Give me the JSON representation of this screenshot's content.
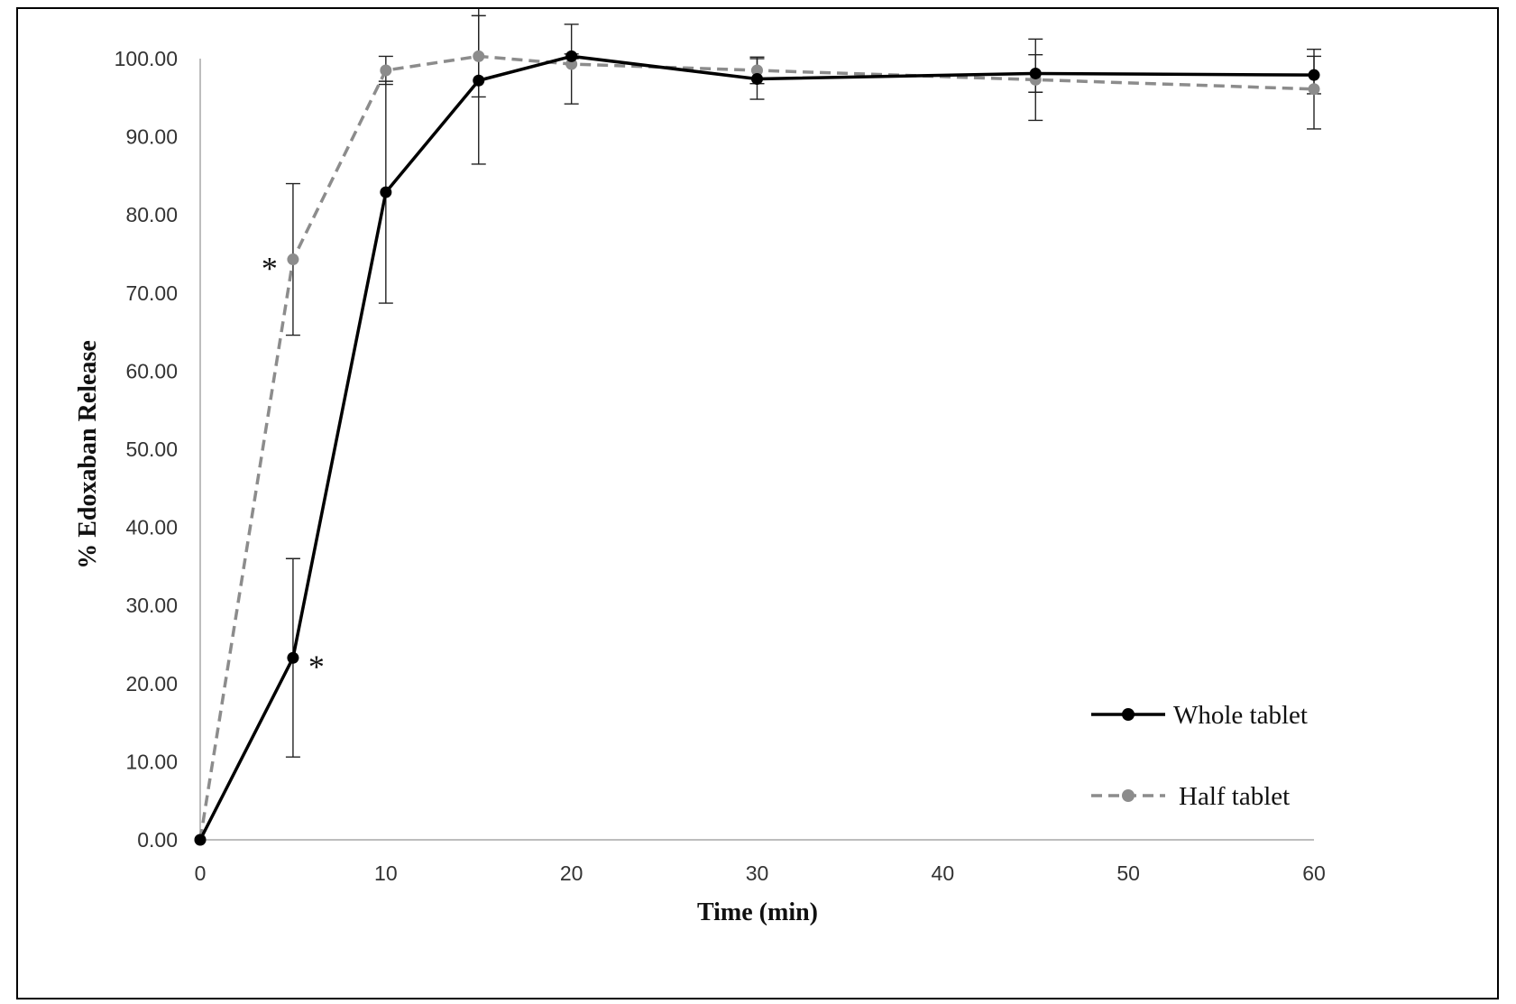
{
  "chart_data": {
    "type": "line",
    "xlabel": "Time (min)",
    "ylabel": "% Edoxaban Release",
    "xlim": [
      0,
      60
    ],
    "ylim": [
      0,
      100
    ],
    "xticks": [
      0,
      10,
      20,
      30,
      40,
      50,
      60
    ],
    "yticks": [
      "0.00",
      "10.00",
      "20.00",
      "30.00",
      "40.00",
      "50.00",
      "60.00",
      "70.00",
      "80.00",
      "90.00",
      "100.00"
    ],
    "legend_position": "bottom-right",
    "grid": false,
    "series": [
      {
        "name": "Whole tablet",
        "color": "#000000",
        "style": "solid",
        "x": [
          0,
          5,
          10,
          15,
          20,
          30,
          45,
          60
        ],
        "y": [
          0,
          23.3,
          82.9,
          97.2,
          100.3,
          97.4,
          98.1,
          97.9
        ],
        "err": [
          0,
          12.7,
          14.2,
          10.7,
          0.3,
          2.6,
          2.4,
          2.4
        ]
      },
      {
        "name": "Half tablet",
        "color": "#8c8c8c",
        "style": "dashed",
        "x": [
          0,
          5,
          10,
          15,
          20,
          30,
          45,
          60
        ],
        "y": [
          0,
          74.3,
          98.5,
          100.3,
          99.3,
          98.5,
          97.3,
          96.1
        ],
        "err": [
          0,
          9.7,
          1.8,
          5.2,
          5.1,
          1.7,
          5.2,
          5.1
        ]
      }
    ],
    "annotations": [
      {
        "text": "*",
        "x": 5,
        "y": 74.3,
        "side": "left"
      },
      {
        "text": "*",
        "x": 5,
        "y": 23.3,
        "side": "right"
      }
    ]
  }
}
